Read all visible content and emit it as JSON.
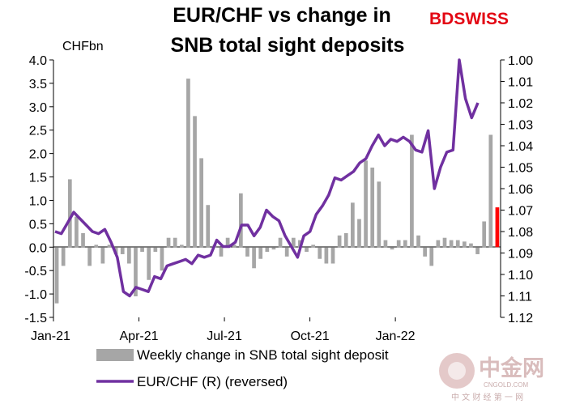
{
  "colors": {
    "bars": "#a6a6a6",
    "latest_bar": "#ff0000",
    "line": "#7030a0",
    "brand": "#e30613",
    "watermark": "#c9a0a0"
  },
  "brand": {
    "logo_text": "BDSWISS"
  },
  "watermark": {
    "main": "中金网",
    "sub": "CNGOLD.COM",
    "tagline": "中 文 财 经 第 一 网"
  },
  "chart_data": {
    "type": "bar+line",
    "title": "EUR/CHF vs change in SNB total sight deposits",
    "title_lines": [
      "EUR/CHF vs change in",
      "SNB total sight deposits"
    ],
    "y_left_unit": "CHFbn",
    "y_left": {
      "min": -1.5,
      "max": 4.0,
      "ticks": [
        "4.0",
        "3.5",
        "3.0",
        "2.5",
        "2.0",
        "1.5",
        "1.0",
        "0.5",
        "0.0",
        "-0.5",
        "-1.0",
        "-1.5"
      ]
    },
    "y_right": {
      "min": 1.0,
      "max": 1.12,
      "reversed": true,
      "ticks": [
        "1.00",
        "1.01",
        "1.02",
        "1.03",
        "1.04",
        "1.05",
        "1.06",
        "1.07",
        "1.08",
        "1.09",
        "1.10",
        "1.11",
        "1.12"
      ]
    },
    "x_tick_labels": [
      "Jan-21",
      "Apr-21",
      "Jul-21",
      "Oct-21",
      "Jan-22"
    ],
    "x_tick_weeks": [
      0,
      13,
      26,
      39,
      52
    ],
    "legend": [
      {
        "label": "Weekly change in SNB total sight deposits (L)",
        "shown": "Weekly change in SNB total sight deposit"
      },
      {
        "label": "EUR/CHF (R) (reversed)",
        "shown": "EUR/CHF (R) (reversed)"
      }
    ],
    "series": [
      {
        "name": "Weekly change in SNB total sight deposits (L)",
        "type": "bar",
        "axis": "left",
        "values": [
          -1.2,
          -0.4,
          1.45,
          0.65,
          0.3,
          -0.4,
          0.05,
          -0.35,
          0.05,
          -0.15,
          -0.15,
          -0.35,
          -1.05,
          -0.1,
          -0.7,
          -0.1,
          -0.5,
          0.2,
          0.2,
          0.05,
          3.6,
          2.8,
          1.9,
          0.9,
          0.05,
          -0.2,
          0.2,
          0.05,
          1.15,
          -0.2,
          -0.45,
          -0.25,
          -0.1,
          -0.05,
          0.2,
          -0.2,
          0.2,
          0.15,
          -0.1,
          0.05,
          -0.25,
          -0.35,
          -0.35,
          0.25,
          0.3,
          0.95,
          0.6,
          1.85,
          1.7,
          1.4,
          0.15,
          -0.05,
          0.15,
          0.15,
          2.4,
          0.25,
          -0.2,
          -0.4,
          0.15,
          0.2,
          0.15,
          0.15,
          0.12,
          0.08,
          -0.15,
          0.55,
          2.4,
          0.85
        ],
        "highlight_last": true
      },
      {
        "name": "EUR/CHF (R) (reversed)",
        "type": "line",
        "axis": "right",
        "values": [
          1.08,
          1.081,
          1.076,
          1.071,
          1.074,
          1.077,
          1.08,
          1.081,
          1.079,
          1.085,
          1.092,
          1.108,
          1.11,
          1.106,
          1.107,
          1.108,
          1.101,
          1.102,
          1.096,
          1.095,
          1.094,
          1.093,
          1.095,
          1.091,
          1.092,
          1.091,
          1.084,
          1.087,
          1.087,
          1.085,
          1.077,
          1.077,
          1.082,
          1.078,
          1.07,
          1.073,
          1.075,
          1.082,
          1.087,
          1.092,
          1.082,
          1.08,
          1.072,
          1.068,
          1.063,
          1.055,
          1.056,
          1.054,
          1.052,
          1.048,
          1.046,
          1.04,
          1.035,
          1.04,
          1.037,
          1.038,
          1.036,
          1.038,
          1.042,
          1.043,
          1.033,
          1.06,
          1.05,
          1.043,
          1.042,
          1.0,
          1.018,
          1.027,
          1.02
        ]
      }
    ],
    "grid": false
  }
}
